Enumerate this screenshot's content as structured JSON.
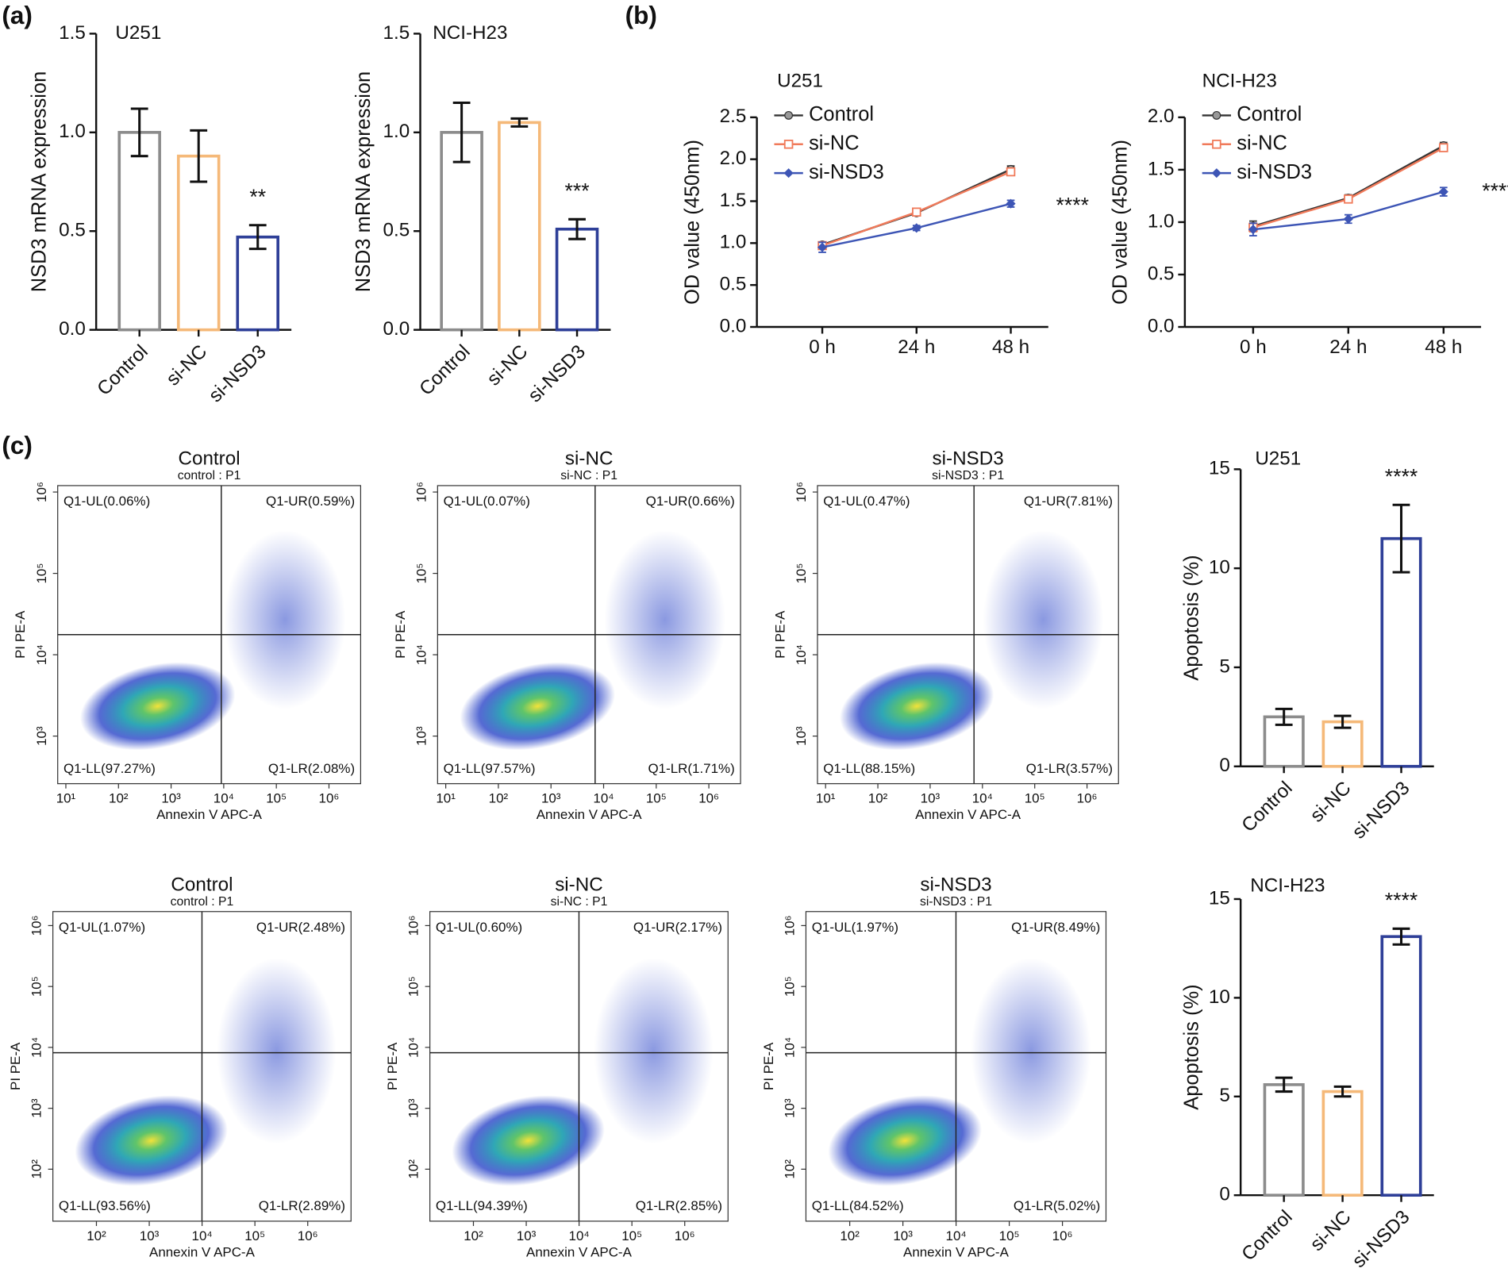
{
  "panel_labels": [
    "(a)",
    "(b)",
    "(c)"
  ],
  "chart_data": [
    {
      "type": "bar",
      "title": "U251",
      "ylabel": "NSD3 mRNA expression",
      "categories": [
        "Control",
        "si-NC",
        "si-NSD3"
      ],
      "values": [
        1.0,
        0.88,
        0.47
      ],
      "errors": [
        0.12,
        0.13,
        0.06
      ],
      "colors": [
        "#8c8c8c",
        "#f5b979",
        "#2e3f98"
      ],
      "ylim": [
        0,
        1.5
      ],
      "yticks": [
        {
          "value": 0,
          "label": "0.0"
        },
        0.5,
        {
          "value": 1,
          "label": "1.0"
        },
        1.5
      ],
      "annotation": "**"
    },
    {
      "type": "bar",
      "title": "NCI-H23",
      "ylabel": "NSD3 mRNA expression",
      "categories": [
        "Control",
        "si-NC",
        "si-NSD3"
      ],
      "values": [
        1.0,
        1.05,
        0.51
      ],
      "errors": [
        0.15,
        0.02,
        0.05
      ],
      "colors": [
        "#8c8c8c",
        "#f5b979",
        "#2e3f98"
      ],
      "ylim": [
        0,
        1.5
      ],
      "yticks": [
        {
          "value": 0,
          "label": "0.0"
        },
        0.5,
        {
          "value": 1,
          "label": "1.0"
        },
        1.5
      ],
      "annotation": "***"
    },
    {
      "type": "line",
      "title": "U251",
      "ylabel": "OD value (450nm)",
      "categories": [
        "0 h",
        "24 h",
        "48 h"
      ],
      "legend": "upper left",
      "series": [
        {
          "name": "Control",
          "color": "#333333",
          "marker": "circle",
          "values": [
            0.98,
            1.36,
            1.88
          ],
          "errors": [
            0.03,
            0.03,
            0.04
          ]
        },
        {
          "name": "si-NC",
          "color": "#f07a5a",
          "marker": "square",
          "values": [
            0.97,
            1.37,
            1.85
          ],
          "errors": [
            0.03,
            0.03,
            0.04
          ]
        },
        {
          "name": "si-NSD3",
          "color": "#3d55b5",
          "marker": "diamond",
          "values": [
            0.95,
            1.18,
            1.47
          ],
          "errors": [
            0.06,
            0.03,
            0.04
          ]
        }
      ],
      "ylim": [
        0,
        2.5
      ],
      "yticks": [
        {
          "value": 0,
          "label": "0.0"
        },
        0.5,
        {
          "value": 1,
          "label": "1.0"
        },
        1.5,
        {
          "value": 2,
          "label": "2.0"
        },
        2.5
      ],
      "annotation": "****"
    },
    {
      "type": "line",
      "title": "NCI-H23",
      "ylabel": "OD value (450nm)",
      "categories": [
        "0 h",
        "24 h",
        "48 h"
      ],
      "legend": "upper left",
      "series": [
        {
          "name": "Control",
          "color": "#333333",
          "marker": "circle",
          "values": [
            0.96,
            1.23,
            1.73
          ],
          "errors": [
            0.05,
            0.03,
            0.03
          ]
        },
        {
          "name": "si-NC",
          "color": "#f07a5a",
          "marker": "square",
          "values": [
            0.95,
            1.22,
            1.71
          ],
          "errors": [
            0.04,
            0.03,
            0.03
          ]
        },
        {
          "name": "si-NSD3",
          "color": "#3d55b5",
          "marker": "diamond",
          "values": [
            0.93,
            1.03,
            1.29
          ],
          "errors": [
            0.06,
            0.04,
            0.04
          ]
        }
      ],
      "ylim": [
        0,
        2.0
      ],
      "yticks": [
        {
          "value": 0,
          "label": "0.0"
        },
        0.5,
        {
          "value": 1,
          "label": "1.0"
        },
        1.5,
        {
          "value": 2,
          "label": "2.0"
        }
      ],
      "annotation": "****"
    },
    {
      "type": "flow",
      "title": "Control",
      "subtitle": "control : P1",
      "xlabel": "Annexin V APC-A",
      "ylabel": "PI PE-A",
      "quadrants": [
        "Q1-UL(0.06%)",
        "Q1-UR(0.59%)",
        "Q1-LL(97.27%)",
        "Q1-LR(2.08%)"
      ],
      "log_scale": true,
      "xlim": [
        7,
        4000000
      ],
      "ylim": [
        260,
        1200000
      ],
      "xticks": [
        {
          "value": 10,
          "label": "10¹"
        },
        {
          "value": 100,
          "label": "10²"
        },
        {
          "value": 1000,
          "label": "10³"
        },
        {
          "value": 10000,
          "label": "10⁴"
        },
        {
          "value": 100000,
          "label": "10⁵"
        },
        {
          "value": 1000000,
          "label": "10⁶"
        }
      ],
      "yticks": [
        {
          "value": 1000,
          "label": "10³"
        },
        {
          "value": 10000,
          "label": "10⁴"
        },
        {
          "value": 100000,
          "label": "10⁵"
        },
        {
          "value": 1000000,
          "label": "10⁶"
        }
      ]
    },
    {
      "type": "flow",
      "title": "si-NC",
      "subtitle": "si-NC : P1",
      "xlabel": "Annexin V APC-A",
      "ylabel": "PI PE-A",
      "quadrants": [
        "Q1-UL(0.07%)",
        "Q1-UR(0.66%)",
        "Q1-LL(97.57%)",
        "Q1-LR(1.71%)"
      ],
      "log_scale": true,
      "xlim": [
        7,
        4000000
      ],
      "ylim": [
        260,
        1200000
      ],
      "xticks": [
        {
          "value": 10,
          "label": "10¹"
        },
        {
          "value": 100,
          "label": "10²"
        },
        {
          "value": 1000,
          "label": "10³"
        },
        {
          "value": 10000,
          "label": "10⁴"
        },
        {
          "value": 100000,
          "label": "10⁵"
        },
        {
          "value": 1000000,
          "label": "10⁶"
        }
      ],
      "yticks": [
        {
          "value": 1000,
          "label": "10³"
        },
        {
          "value": 10000,
          "label": "10⁴"
        },
        {
          "value": 100000,
          "label": "10⁵"
        },
        {
          "value": 1000000,
          "label": "10⁶"
        }
      ]
    },
    {
      "type": "flow",
      "title": "si-NSD3",
      "subtitle": "si-NSD3 : P1",
      "xlabel": "Annexin V APC-A",
      "ylabel": "PI PE-A",
      "quadrants": [
        "Q1-UL(0.47%)",
        "Q1-UR(7.81%)",
        "Q1-LL(88.15%)",
        "Q1-LR(3.57%)"
      ],
      "log_scale": true,
      "xlim": [
        7,
        4000000
      ],
      "ylim": [
        260,
        1200000
      ],
      "xticks": [
        {
          "value": 10,
          "label": "10¹"
        },
        {
          "value": 100,
          "label": "10²"
        },
        {
          "value": 1000,
          "label": "10³"
        },
        {
          "value": 10000,
          "label": "10⁴"
        },
        {
          "value": 100000,
          "label": "10⁵"
        },
        {
          "value": 1000000,
          "label": "10⁶"
        }
      ],
      "yticks": [
        {
          "value": 1000,
          "label": "10³"
        },
        {
          "value": 10000,
          "label": "10⁴"
        },
        {
          "value": 100000,
          "label": "10⁵"
        },
        {
          "value": 1000000,
          "label": "10⁶"
        }
      ]
    },
    {
      "type": "bar",
      "title": "U251",
      "ylabel": "Apoptosis (%)",
      "categories": [
        "Control",
        "si-NC",
        "si-NSD3"
      ],
      "values": [
        2.5,
        2.25,
        11.5
      ],
      "errors": [
        0.4,
        0.3,
        1.7
      ],
      "colors": [
        "#8c8c8c",
        "#f5b979",
        "#2e3f98"
      ],
      "ylim": [
        0,
        15
      ],
      "yticks": [
        0,
        5,
        10,
        15
      ],
      "annotation": "****"
    },
    {
      "type": "flow",
      "title": "Control",
      "subtitle": "control : P1",
      "xlabel": "Annexin V APC-A",
      "ylabel": "PI PE-A",
      "quadrants": [
        "Q1-UL(1.07%)",
        "Q1-UR(2.48%)",
        "Q1-LL(93.56%)",
        "Q1-LR(2.89%)"
      ],
      "log_scale": true,
      "xlim": [
        15,
        6600000
      ],
      "ylim": [
        14,
        1700000
      ],
      "xticks": [
        {
          "value": 100,
          "label": "10²"
        },
        {
          "value": 1000,
          "label": "10³"
        },
        {
          "value": 10000,
          "label": "10⁴"
        },
        {
          "value": 100000,
          "label": "10⁵"
        },
        {
          "value": 1000000,
          "label": "10⁶"
        }
      ],
      "yticks": [
        {
          "value": 100,
          "label": "10²"
        },
        {
          "value": 1000,
          "label": "10³"
        },
        {
          "value": 10000,
          "label": "10⁴"
        },
        {
          "value": 100000,
          "label": "10⁵"
        },
        {
          "value": 1000000,
          "label": "10⁶"
        }
      ]
    },
    {
      "type": "flow",
      "title": "si-NC",
      "subtitle": "si-NC : P1",
      "xlabel": "Annexin V APC-A",
      "ylabel": "PI PE-A",
      "quadrants": [
        "Q1-UL(0.60%)",
        "Q1-UR(2.17%)",
        "Q1-LL(94.39%)",
        "Q1-LR(2.85%)"
      ],
      "log_scale": true,
      "xlim": [
        15,
        6600000
      ],
      "ylim": [
        14,
        1700000
      ],
      "xticks": [
        {
          "value": 100,
          "label": "10²"
        },
        {
          "value": 1000,
          "label": "10³"
        },
        {
          "value": 10000,
          "label": "10⁴"
        },
        {
          "value": 100000,
          "label": "10⁵"
        },
        {
          "value": 1000000,
          "label": "10⁶"
        }
      ],
      "yticks": [
        {
          "value": 100,
          "label": "10²"
        },
        {
          "value": 1000,
          "label": "10³"
        },
        {
          "value": 10000,
          "label": "10⁴"
        },
        {
          "value": 100000,
          "label": "10⁵"
        },
        {
          "value": 1000000,
          "label": "10⁶"
        }
      ]
    },
    {
      "type": "flow",
      "title": "si-NSD3",
      "subtitle": "si-NSD3 : P1",
      "xlabel": "Annexin V APC-A",
      "ylabel": "PI PE-A",
      "quadrants": [
        "Q1-UL(1.97%)",
        "Q1-UR(8.49%)",
        "Q1-LL(84.52%)",
        "Q1-LR(5.02%)"
      ],
      "log_scale": true,
      "xlim": [
        15,
        6600000
      ],
      "ylim": [
        14,
        1700000
      ],
      "xticks": [
        {
          "value": 100,
          "label": "10²"
        },
        {
          "value": 1000,
          "label": "10³"
        },
        {
          "value": 10000,
          "label": "10⁴"
        },
        {
          "value": 100000,
          "label": "10⁵"
        },
        {
          "value": 1000000,
          "label": "10⁶"
        }
      ],
      "yticks": [
        {
          "value": 100,
          "label": "10²"
        },
        {
          "value": 1000,
          "label": "10³"
        },
        {
          "value": 10000,
          "label": "10⁴"
        },
        {
          "value": 100000,
          "label": "10⁵"
        },
        {
          "value": 1000000,
          "label": "10⁶"
        }
      ]
    },
    {
      "type": "bar",
      "title": "NCI-H23",
      "ylabel": "Apoptosis (%)",
      "categories": [
        "Control",
        "si-NC",
        "si-NSD3"
      ],
      "values": [
        5.6,
        5.25,
        13.1
      ],
      "errors": [
        0.35,
        0.25,
        0.4
      ],
      "colors": [
        "#8c8c8c",
        "#f5b979",
        "#2e3f98"
      ],
      "ylim": [
        0,
        15
      ],
      "yticks": [
        0,
        5,
        10,
        15
      ],
      "annotation": "****"
    }
  ]
}
